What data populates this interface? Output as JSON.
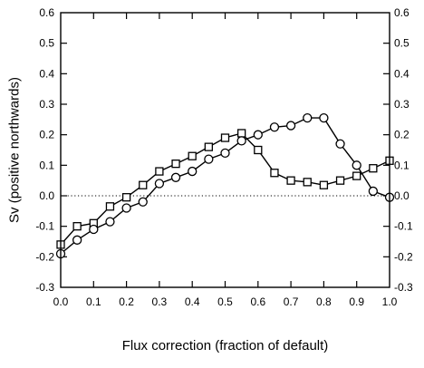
{
  "chart_data": {
    "type": "line",
    "title": "",
    "xlabel": "Flux correction (fraction of default)",
    "ylabel": "Sv (positive northwards)",
    "xlim": [
      0.0,
      1.0
    ],
    "ylim": [
      -0.3,
      0.6
    ],
    "x_ticks": [
      "0.0",
      "0.1",
      "0.2",
      "0.3",
      "0.4",
      "0.5",
      "0.6",
      "0.7",
      "0.8",
      "0.9",
      "1.0"
    ],
    "y_ticks": [
      "-0.3",
      "-0.2",
      "-0.1",
      "0.0",
      "0.1",
      "0.2",
      "0.3",
      "0.4",
      "0.5",
      "0.6"
    ],
    "reference_line": {
      "y": 0.0,
      "style": "dotted"
    },
    "grid": false,
    "legend": "none",
    "series": [
      {
        "marker": "square",
        "color": "#000000",
        "x": [
          0.0,
          0.05,
          0.1,
          0.15,
          0.2,
          0.25,
          0.3,
          0.35,
          0.4,
          0.45,
          0.5,
          0.55,
          0.6,
          0.65,
          0.7,
          0.75,
          0.8,
          0.85,
          0.9,
          0.95,
          1.0
        ],
        "values": [
          -0.16,
          -0.1,
          -0.09,
          -0.035,
          -0.005,
          0.035,
          0.08,
          0.105,
          0.13,
          0.16,
          0.19,
          0.205,
          0.15,
          0.075,
          0.05,
          0.045,
          0.035,
          0.05,
          0.065,
          0.09,
          0.115
        ]
      },
      {
        "marker": "circle",
        "color": "#000000",
        "x": [
          0.0,
          0.05,
          0.1,
          0.15,
          0.2,
          0.25,
          0.3,
          0.35,
          0.4,
          0.45,
          0.5,
          0.55,
          0.6,
          0.65,
          0.7,
          0.75,
          0.8,
          0.85,
          0.9,
          0.95,
          1.0
        ],
        "values": [
          -0.19,
          -0.145,
          -0.11,
          -0.085,
          -0.04,
          -0.02,
          0.04,
          0.06,
          0.08,
          0.12,
          0.14,
          0.18,
          0.2,
          0.225,
          0.23,
          0.255,
          0.255,
          0.17,
          0.1,
          0.015,
          -0.005
        ]
      }
    ]
  }
}
